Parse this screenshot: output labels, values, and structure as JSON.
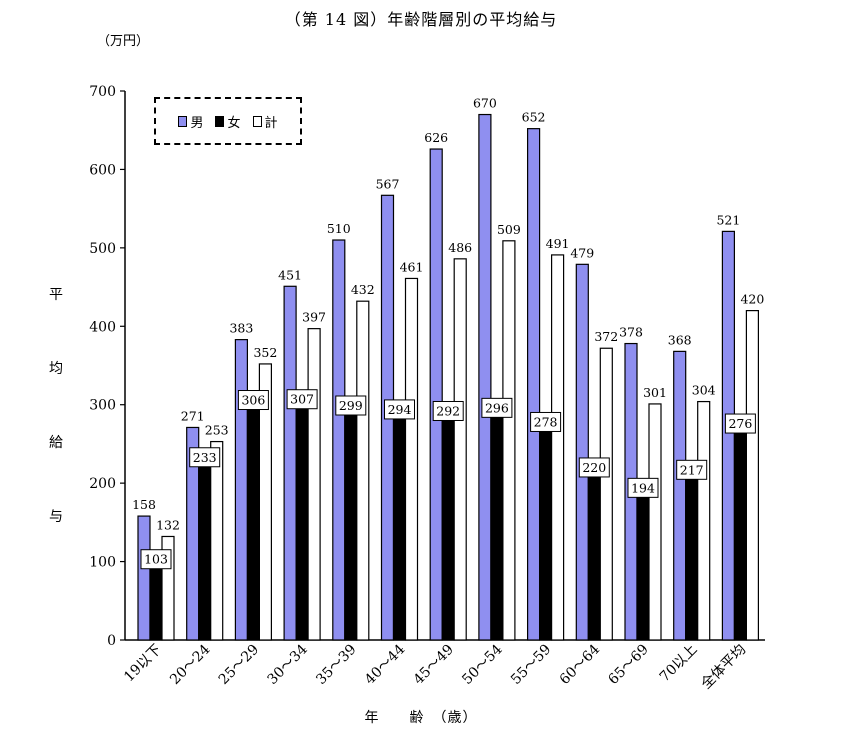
{
  "title": "（第 14 図）年齢階層別の平均給与",
  "unit_label": "（万円）",
  "y_axis_title": "平均給与",
  "x_axis_title": "年　　齢　（歳）",
  "colors": {
    "male": "#8f8ff0",
    "female": "#000000",
    "total": "#ffffff"
  },
  "legend": {
    "male": "男",
    "female": "女",
    "total": "計"
  },
  "chart_data": {
    "type": "bar",
    "title": "（第 14 図）年齢階層別の平均給与",
    "xlabel": "年　　齢　（歳）",
    "ylabel": "平均給与",
    "unit": "（万円）",
    "ylim": [
      0,
      700
    ],
    "yticks": [
      0,
      100,
      200,
      300,
      400,
      500,
      600,
      700
    ],
    "categories": [
      "19以下",
      "20～24",
      "25～29",
      "30～34",
      "35～39",
      "40～44",
      "45～49",
      "50～54",
      "55～59",
      "60～64",
      "65～69",
      "70以上",
      "全体平均"
    ],
    "series": [
      {
        "name": "男",
        "values": [
          158,
          271,
          383,
          451,
          510,
          567,
          626,
          670,
          652,
          479,
          378,
          368,
          521
        ]
      },
      {
        "name": "女",
        "values": [
          103,
          233,
          306,
          307,
          299,
          294,
          292,
          296,
          278,
          220,
          194,
          217,
          276
        ]
      },
      {
        "name": "計",
        "values": [
          132,
          253,
          352,
          397,
          432,
          461,
          486,
          509,
          491,
          372,
          301,
          304,
          420
        ]
      }
    ],
    "legend_position": "top-left",
    "grid": false
  }
}
